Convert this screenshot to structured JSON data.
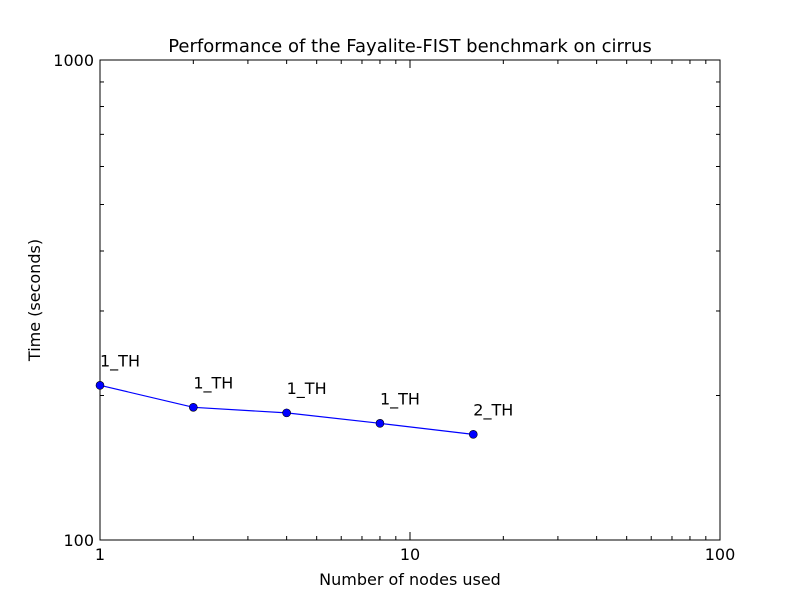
{
  "chart_data": {
    "type": "line",
    "title": "Performance of the Fayalite-FIST benchmark on cirrus",
    "xlabel": "Number of nodes used",
    "ylabel": "Time (seconds)",
    "xscale": "log",
    "yscale": "log",
    "xlim": [
      1,
      100
    ],
    "ylim": [
      100,
      1000
    ],
    "x_ticks": [
      1,
      10,
      100
    ],
    "x_tick_labels": [
      "1",
      "10",
      "100"
    ],
    "y_ticks": [
      100,
      1000
    ],
    "y_tick_labels": [
      "100",
      "1000"
    ],
    "grid": false,
    "series": [
      {
        "color": "#0000ff",
        "x": [
          1,
          2,
          4,
          8,
          16
        ],
        "y": [
          210,
          189,
          184,
          175,
          166
        ],
        "point_labels": [
          "1_TH",
          "1_TH",
          "1_TH",
          "1_TH",
          "2_TH"
        ]
      }
    ]
  }
}
